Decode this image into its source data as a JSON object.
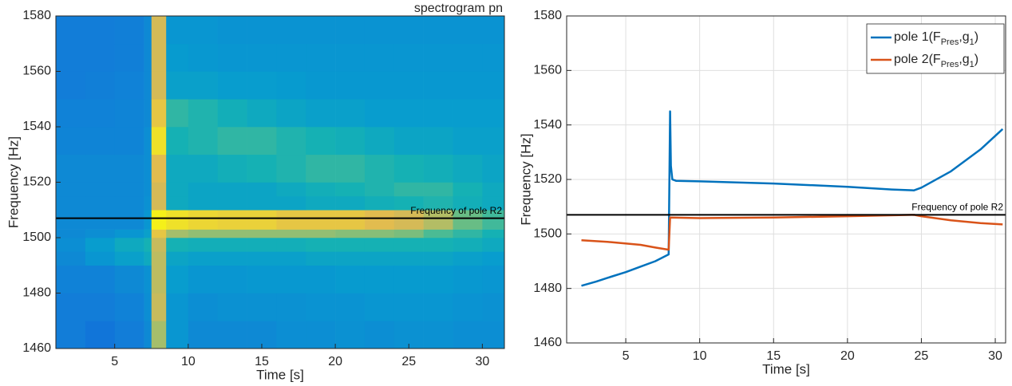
{
  "chart_data": [
    {
      "type": "heatmap",
      "title": "spectrogram pn",
      "xlabel": "Time [s]",
      "ylabel": "Frequency [Hz]",
      "colormap": "parula",
      "xlim": [
        1,
        31.5
      ],
      "ylim": [
        1460,
        1580
      ],
      "xticks": [
        5,
        10,
        15,
        20,
        25,
        30
      ],
      "yticks": [
        1460,
        1480,
        1500,
        1520,
        1540,
        1560,
        1580
      ],
      "x_edges": [
        1,
        3,
        5,
        7,
        7.5,
        8.5,
        10,
        12,
        14,
        16,
        18,
        20,
        22,
        24,
        26,
        28,
        30,
        31.5
      ],
      "y_edges": [
        1460,
        1470,
        1480,
        1490,
        1495,
        1500,
        1503,
        1510,
        1515,
        1520,
        1530,
        1540,
        1550,
        1560,
        1570,
        1580
      ],
      "z": [
        [
          0.25,
          0.22,
          0.25,
          0.3,
          0.75,
          0.35,
          0.3,
          0.3,
          0.3,
          0.32,
          0.32,
          0.33,
          0.32,
          0.33,
          0.33,
          0.32,
          0.32
        ],
        [
          0.25,
          0.25,
          0.27,
          0.32,
          0.82,
          0.35,
          0.32,
          0.33,
          0.33,
          0.33,
          0.34,
          0.34,
          0.35,
          0.35,
          0.35,
          0.34,
          0.33
        ],
        [
          0.27,
          0.27,
          0.3,
          0.33,
          0.8,
          0.38,
          0.35,
          0.35,
          0.36,
          0.36,
          0.36,
          0.37,
          0.37,
          0.37,
          0.37,
          0.36,
          0.35
        ],
        [
          0.3,
          0.35,
          0.4,
          0.45,
          0.8,
          0.42,
          0.4,
          0.4,
          0.4,
          0.4,
          0.42,
          0.42,
          0.42,
          0.42,
          0.42,
          0.4,
          0.38
        ],
        [
          0.32,
          0.38,
          0.45,
          0.5,
          0.82,
          0.5,
          0.48,
          0.48,
          0.48,
          0.48,
          0.5,
          0.5,
          0.5,
          0.5,
          0.5,
          0.48,
          0.45
        ],
        [
          0.3,
          0.32,
          0.35,
          0.4,
          0.9,
          0.75,
          0.72,
          0.72,
          0.72,
          0.72,
          0.72,
          0.7,
          0.7,
          0.68,
          0.6,
          0.55,
          0.5
        ],
        [
          0.3,
          0.3,
          0.3,
          0.35,
          0.98,
          0.95,
          0.93,
          0.92,
          0.92,
          0.9,
          0.9,
          0.9,
          0.88,
          0.85,
          0.78,
          0.65,
          0.58
        ],
        [
          0.3,
          0.3,
          0.3,
          0.33,
          0.85,
          0.45,
          0.42,
          0.42,
          0.42,
          0.42,
          0.45,
          0.45,
          0.48,
          0.5,
          0.52,
          0.48,
          0.45
        ],
        [
          0.3,
          0.3,
          0.3,
          0.32,
          0.85,
          0.45,
          0.42,
          0.42,
          0.42,
          0.45,
          0.48,
          0.5,
          0.52,
          0.55,
          0.55,
          0.5,
          0.45
        ],
        [
          0.3,
          0.3,
          0.3,
          0.32,
          0.88,
          0.45,
          0.45,
          0.48,
          0.5,
          0.52,
          0.55,
          0.55,
          0.52,
          0.5,
          0.48,
          0.45,
          0.42
        ],
        [
          0.28,
          0.28,
          0.28,
          0.32,
          0.95,
          0.5,
          0.52,
          0.55,
          0.55,
          0.52,
          0.5,
          0.48,
          0.45,
          0.42,
          0.42,
          0.4,
          0.4
        ],
        [
          0.27,
          0.27,
          0.28,
          0.3,
          0.9,
          0.55,
          0.52,
          0.48,
          0.45,
          0.42,
          0.4,
          0.4,
          0.38,
          0.38,
          0.38,
          0.38,
          0.38
        ],
        [
          0.25,
          0.26,
          0.27,
          0.3,
          0.85,
          0.4,
          0.4,
          0.38,
          0.38,
          0.37,
          0.36,
          0.36,
          0.36,
          0.36,
          0.36,
          0.36,
          0.36
        ],
        [
          0.25,
          0.25,
          0.26,
          0.3,
          0.85,
          0.37,
          0.36,
          0.35,
          0.35,
          0.35,
          0.35,
          0.35,
          0.35,
          0.35,
          0.35,
          0.35,
          0.35
        ],
        [
          0.25,
          0.25,
          0.26,
          0.3,
          0.85,
          0.35,
          0.35,
          0.34,
          0.34,
          0.34,
          0.34,
          0.34,
          0.34,
          0.34,
          0.34,
          0.34,
          0.34
        ]
      ],
      "hline": {
        "value": 1507,
        "label": "Frequency of pole R2",
        "color": "#000000"
      }
    },
    {
      "type": "line",
      "xlabel": "Time [s]",
      "ylabel": "Frequency [Hz]",
      "grid": true,
      "legend": "top-right",
      "xlim": [
        1,
        30.7
      ],
      "ylim": [
        1460,
        1580
      ],
      "xticks": [
        5,
        10,
        15,
        20,
        25,
        30
      ],
      "yticks": [
        1460,
        1480,
        1500,
        1520,
        1540,
        1560,
        1580
      ],
      "series": [
        {
          "name": "pole 1(F_{Pres},g_{1})",
          "color": "#0072BD",
          "x": [
            2,
            3,
            4,
            5,
            6,
            7,
            7.9,
            8.0,
            8.05,
            8.15,
            8.4,
            10,
            15,
            20,
            23,
            24.5,
            25,
            27,
            29,
            30.5
          ],
          "values": [
            1481,
            1482.5,
            1484.3,
            1486,
            1488,
            1490,
            1492.5,
            1545,
            1525,
            1520,
            1519.5,
            1519.3,
            1518.5,
            1517.3,
            1516.3,
            1516,
            1517,
            1523,
            1531,
            1538.5
          ]
        },
        {
          "name": "pole 2(F_{Pres},g_{1})",
          "color": "#D95319",
          "x": [
            2,
            4,
            6,
            7,
            7.9,
            8.0,
            10,
            15,
            20,
            24.5,
            25,
            27,
            29,
            30.5
          ],
          "values": [
            1497.7,
            1497,
            1496,
            1495,
            1494.2,
            1506,
            1505.8,
            1506,
            1506.5,
            1507,
            1506.5,
            1505,
            1504,
            1503.5
          ]
        }
      ],
      "hline": {
        "value": 1507,
        "label": "Frequency of pole R2",
        "color": "#000000"
      }
    }
  ]
}
